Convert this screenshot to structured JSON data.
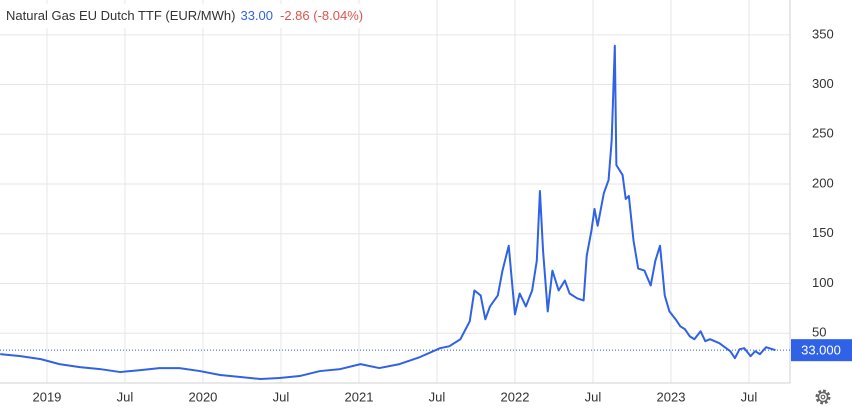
{
  "chart_data": {
    "type": "line",
    "title": "Natural Gas EU Dutch TTF (EUR/MWh)",
    "last_price": "33.00",
    "change": "-2.86 (-8.04%)",
    "color": "#2f62e6",
    "grid": true,
    "xlim": [
      2018.699,
      2023.763
    ],
    "ylim": [
      0,
      385
    ],
    "xticks": [
      {
        "value": 2019,
        "label": "2019"
      },
      {
        "value": 2019.5,
        "label": "Jul"
      },
      {
        "value": 2020,
        "label": "2020"
      },
      {
        "value": 2020.5,
        "label": "Jul"
      },
      {
        "value": 2021,
        "label": "2021"
      },
      {
        "value": 2021.5,
        "label": "Jul"
      },
      {
        "value": 2022,
        "label": "2022"
      },
      {
        "value": 2022.5,
        "label": "Jul"
      },
      {
        "value": 2023,
        "label": "2023"
      },
      {
        "value": 2023.5,
        "label": "Jul"
      }
    ],
    "yticks": [
      50,
      100,
      150,
      200,
      250,
      300,
      350
    ],
    "last_value": {
      "value": 33,
      "label": "33.000"
    },
    "x": [
      2018.7,
      2018.83,
      2018.96,
      2019.08,
      2019.21,
      2019.34,
      2019.47,
      2019.6,
      2019.72,
      2019.85,
      2019.98,
      2020.11,
      2020.24,
      2020.37,
      2020.49,
      2020.62,
      2020.75,
      2020.88,
      2021.01,
      2021.13,
      2021.26,
      2021.39,
      2021.52,
      2021.58,
      2021.65,
      2021.71,
      2021.74,
      2021.78,
      2021.81,
      2021.84,
      2021.89,
      2021.92,
      2021.96,
      2021.98,
      2022.0,
      2022.03,
      2022.07,
      2022.11,
      2022.14,
      2022.16,
      2022.18,
      2022.21,
      2022.24,
      2022.28,
      2022.32,
      2022.35,
      2022.4,
      2022.44,
      2022.46,
      2022.49,
      2022.51,
      2022.53,
      2022.57,
      2022.6,
      2022.62,
      2022.64,
      2022.65,
      2022.69,
      2022.71,
      2022.73,
      2022.76,
      2022.79,
      2022.83,
      2022.87,
      2022.9,
      2022.93,
      2022.96,
      2022.99,
      2023.03,
      2023.06,
      2023.09,
      2023.12,
      2023.15,
      2023.19,
      2023.22,
      2023.25,
      2023.31,
      2023.38,
      2023.41,
      2023.44,
      2023.47,
      2023.51,
      2023.54,
      2023.57,
      2023.61,
      2023.67
    ],
    "values": [
      29,
      27,
      24,
      19,
      16,
      14,
      11,
      13,
      15,
      15,
      12,
      8,
      6,
      4,
      5,
      7,
      12,
      14,
      19,
      15,
      19,
      26,
      35,
      37,
      44,
      62,
      93,
      88,
      64,
      77,
      88,
      113,
      138,
      103,
      69,
      90,
      77,
      93,
      123,
      193,
      133,
      72,
      113,
      93,
      103,
      90,
      85,
      83,
      128,
      153,
      175,
      158,
      191,
      204,
      244,
      339,
      219,
      209,
      185,
      188,
      143,
      115,
      113,
      98,
      123,
      138,
      88,
      72,
      64,
      57,
      54,
      47,
      44,
      52,
      42,
      44,
      40,
      32,
      25,
      34,
      35,
      27,
      32,
      29,
      36,
      33
    ]
  }
}
